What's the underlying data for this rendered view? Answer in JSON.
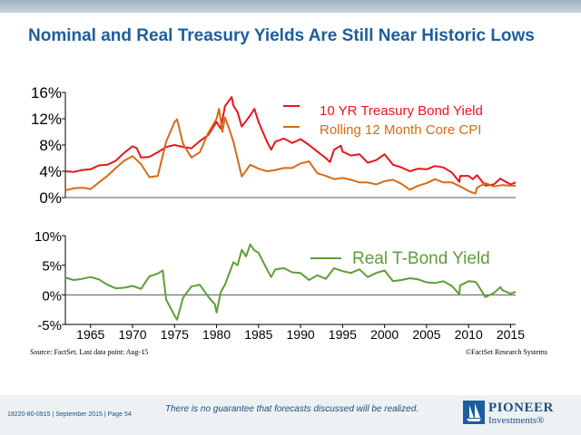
{
  "page": {
    "title": "Nominal and Real Treasury Yields Are Still Near Historic Lows",
    "source": "Source: FactSet. Last data point: Aug-15",
    "copyright": "©FactSet Research Systems",
    "disclaimer": "There is no guarantee that forecasts discussed will be realized.",
    "doc_id": "19220-80-0915 | September 2015 | Page 54",
    "logo_name": "PIONEER",
    "logo_sub": "Investments®"
  },
  "chart_data": [
    {
      "type": "line",
      "ylim": [
        0,
        16
      ],
      "xlim": [
        1962,
        2015.6
      ],
      "yticks": [
        "0%",
        "4%",
        "8%",
        "12%",
        "16%"
      ],
      "ytick_values": [
        0,
        4,
        8,
        12,
        16
      ],
      "series": [
        {
          "name": "10 YR Treasury Bond Yield",
          "color": "#e8151b",
          "points": [
            [
              1962,
              4.0
            ],
            [
              1963,
              3.9
            ],
            [
              1964,
              4.2
            ],
            [
              1965,
              4.3
            ],
            [
              1966,
              4.9
            ],
            [
              1967,
              5.0
            ],
            [
              1968,
              5.6
            ],
            [
              1969,
              6.8
            ],
            [
              1970,
              7.8
            ],
            [
              1970.5,
              7.5
            ],
            [
              1971,
              6.1
            ],
            [
              1972,
              6.2
            ],
            [
              1973,
              6.9
            ],
            [
              1974,
              7.7
            ],
            [
              1975,
              8.0
            ],
            [
              1976,
              7.7
            ],
            [
              1977,
              7.5
            ],
            [
              1978,
              8.6
            ],
            [
              1979,
              9.5
            ],
            [
              1980,
              11.5
            ],
            [
              1980.5,
              10.5
            ],
            [
              1981,
              13.9
            ],
            [
              1981.8,
              15.3
            ],
            [
              1982,
              14.0
            ],
            [
              1982.5,
              13.0
            ],
            [
              1983,
              10.8
            ],
            [
              1984,
              12.5
            ],
            [
              1984.5,
              13.5
            ],
            [
              1985,
              11.5
            ],
            [
              1986,
              8.5
            ],
            [
              1986.5,
              7.3
            ],
            [
              1987,
              8.5
            ],
            [
              1988,
              9.0
            ],
            [
              1989,
              8.3
            ],
            [
              1990,
              8.9
            ],
            [
              1991,
              8.0
            ],
            [
              1992,
              7.0
            ],
            [
              1993,
              6.0
            ],
            [
              1993.5,
              5.4
            ],
            [
              1994,
              7.3
            ],
            [
              1994.8,
              7.9
            ],
            [
              1995,
              7.0
            ],
            [
              1996,
              6.4
            ],
            [
              1997,
              6.6
            ],
            [
              1998,
              5.3
            ],
            [
              1999,
              5.7
            ],
            [
              2000,
              6.6
            ],
            [
              2001,
              5.0
            ],
            [
              2002,
              4.6
            ],
            [
              2003,
              4.0
            ],
            [
              2004,
              4.4
            ],
            [
              2005,
              4.3
            ],
            [
              2006,
              4.8
            ],
            [
              2007,
              4.6
            ],
            [
              2008,
              3.8
            ],
            [
              2008.9,
              2.4
            ],
            [
              2009,
              3.3
            ],
            [
              2010,
              3.3
            ],
            [
              2010.5,
              2.8
            ],
            [
              2011,
              3.4
            ],
            [
              2012,
              1.8
            ],
            [
              2013,
              2.0
            ],
            [
              2013.8,
              2.9
            ],
            [
              2014,
              2.7
            ],
            [
              2015,
              2.0
            ],
            [
              2015.6,
              2.3
            ]
          ]
        },
        {
          "name": "Rolling 12 Month Core CPI",
          "color": "#d86a12",
          "points": [
            [
              1962,
              1.1
            ],
            [
              1963,
              1.4
            ],
            [
              1964,
              1.5
            ],
            [
              1965,
              1.3
            ],
            [
              1966,
              2.3
            ],
            [
              1967,
              3.3
            ],
            [
              1968,
              4.5
            ],
            [
              1969,
              5.6
            ],
            [
              1970,
              6.3
            ],
            [
              1971,
              5.1
            ],
            [
              1972,
              3.1
            ],
            [
              1973,
              3.3
            ],
            [
              1974,
              8.5
            ],
            [
              1975,
              11.5
            ],
            [
              1975.3,
              11.9
            ],
            [
              1976,
              8.2
            ],
            [
              1977,
              6.1
            ],
            [
              1978,
              6.9
            ],
            [
              1979,
              9.8
            ],
            [
              1980,
              12.0
            ],
            [
              1980.3,
              13.5
            ],
            [
              1980.7,
              10.0
            ],
            [
              1981,
              12.2
            ],
            [
              1981.5,
              10.5
            ],
            [
              1982,
              8.5
            ],
            [
              1983,
              3.2
            ],
            [
              1984,
              5.0
            ],
            [
              1985,
              4.4
            ],
            [
              1986,
              4.0
            ],
            [
              1987,
              4.2
            ],
            [
              1988,
              4.5
            ],
            [
              1989,
              4.5
            ],
            [
              1990,
              5.2
            ],
            [
              1991,
              5.5
            ],
            [
              1992,
              3.7
            ],
            [
              1993,
              3.3
            ],
            [
              1994,
              2.8
            ],
            [
              1995,
              3.0
            ],
            [
              1996,
              2.7
            ],
            [
              1997,
              2.3
            ],
            [
              1998,
              2.3
            ],
            [
              1999,
              2.0
            ],
            [
              2000,
              2.5
            ],
            [
              2001,
              2.7
            ],
            [
              2002,
              2.1
            ],
            [
              2003,
              1.2
            ],
            [
              2004,
              1.8
            ],
            [
              2005,
              2.2
            ],
            [
              2006,
              2.8
            ],
            [
              2007,
              2.3
            ],
            [
              2008,
              2.3
            ],
            [
              2009,
              1.7
            ],
            [
              2010,
              1.0
            ],
            [
              2010.8,
              0.6
            ],
            [
              2011,
              1.5
            ],
            [
              2012,
              2.2
            ],
            [
              2013,
              1.7
            ],
            [
              2014,
              1.9
            ],
            [
              2015,
              1.8
            ],
            [
              2015.6,
              1.8
            ]
          ]
        }
      ]
    },
    {
      "type": "line",
      "ylim": [
        -5,
        10
      ],
      "xlim": [
        1962,
        2015.6
      ],
      "yticks": [
        "-5%",
        "0%",
        "5%",
        "10%"
      ],
      "ytick_values": [
        -5,
        0,
        5,
        10
      ],
      "xticks": [
        "1965",
        "1970",
        "1975",
        "1980",
        "1985",
        "1990",
        "1995",
        "2000",
        "2005",
        "2010",
        "2015"
      ],
      "xtick_values": [
        1965,
        1970,
        1975,
        1980,
        1985,
        1990,
        1995,
        2000,
        2005,
        2010,
        2015
      ],
      "series": [
        {
          "name": "Real T-Bond Yield",
          "color": "#5e9e36",
          "points": [
            [
              1962,
              2.9
            ],
            [
              1963,
              2.5
            ],
            [
              1964,
              2.7
            ],
            [
              1965,
              3.0
            ],
            [
              1966,
              2.6
            ],
            [
              1967,
              1.7
            ],
            [
              1968,
              1.1
            ],
            [
              1969,
              1.2
            ],
            [
              1970,
              1.5
            ],
            [
              1971,
              1.0
            ],
            [
              1972,
              3.1
            ],
            [
              1973,
              3.6
            ],
            [
              1973.6,
              4.1
            ],
            [
              1974,
              -0.8
            ],
            [
              1975,
              -3.5
            ],
            [
              1975.3,
              -4.2
            ],
            [
              1976,
              -0.5
            ],
            [
              1977,
              1.4
            ],
            [
              1978,
              1.7
            ],
            [
              1979,
              -0.3
            ],
            [
              1979.8,
              -1.6
            ],
            [
              1980,
              -3.0
            ],
            [
              1980.5,
              0.5
            ],
            [
              1981,
              1.7
            ],
            [
              1982,
              5.5
            ],
            [
              1982.5,
              5.0
            ],
            [
              1983,
              7.6
            ],
            [
              1983.5,
              6.5
            ],
            [
              1984,
              8.5
            ],
            [
              1984.5,
              7.5
            ],
            [
              1985,
              7.1
            ],
            [
              1986,
              4.3
            ],
            [
              1986.5,
              3.0
            ],
            [
              1987,
              4.3
            ],
            [
              1988,
              4.5
            ],
            [
              1989,
              3.8
            ],
            [
              1990,
              3.7
            ],
            [
              1991,
              2.5
            ],
            [
              1992,
              3.3
            ],
            [
              1993,
              2.7
            ],
            [
              1994,
              4.5
            ],
            [
              1995,
              4.0
            ],
            [
              1996,
              3.7
            ],
            [
              1997,
              4.3
            ],
            [
              1998,
              3.0
            ],
            [
              1999,
              3.7
            ],
            [
              2000,
              4.1
            ],
            [
              2001,
              2.3
            ],
            [
              2002,
              2.5
            ],
            [
              2003,
              2.8
            ],
            [
              2004,
              2.6
            ],
            [
              2005,
              2.1
            ],
            [
              2006,
              2.0
            ],
            [
              2007,
              2.3
            ],
            [
              2008,
              1.5
            ],
            [
              2008.9,
              0.1
            ],
            [
              2009,
              1.6
            ],
            [
              2010,
              2.3
            ],
            [
              2010.8,
              2.2
            ],
            [
              2011,
              1.9
            ],
            [
              2012,
              -0.4
            ],
            [
              2013,
              0.3
            ],
            [
              2013.8,
              1.3
            ],
            [
              2014,
              0.8
            ],
            [
              2015,
              0.2
            ],
            [
              2015.6,
              0.5
            ]
          ]
        }
      ]
    }
  ]
}
